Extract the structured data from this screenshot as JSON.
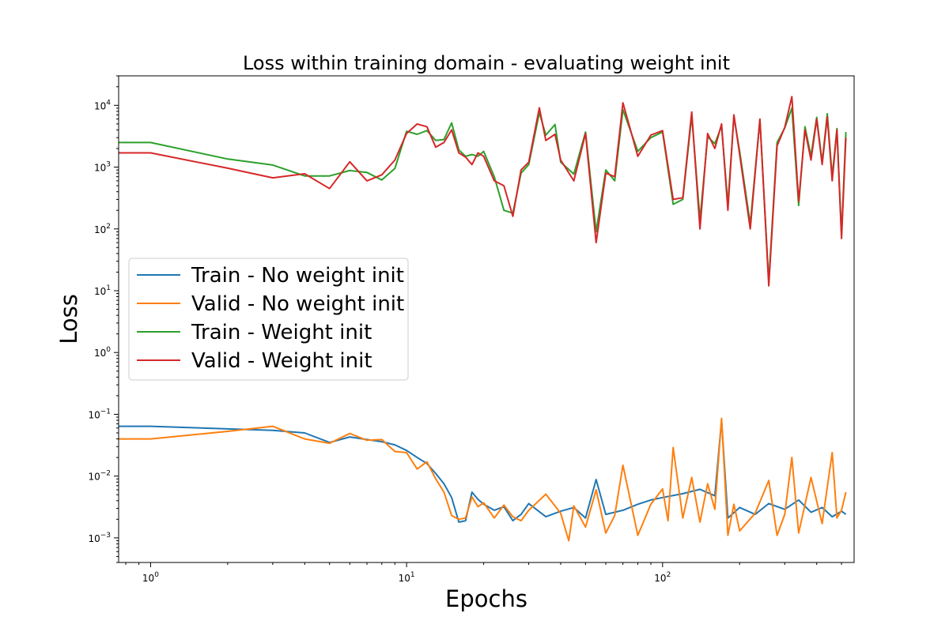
{
  "chart_data": {
    "type": "line",
    "title": "Loss within training domain - evaluating weight init",
    "xlabel": "Epochs",
    "ylabel": "Loss",
    "xscale": "log",
    "yscale": "log",
    "xlim": [
      0.75,
      560
    ],
    "ylim": [
      0.0004,
      30000
    ],
    "grid": false,
    "legend_position": "center-left",
    "x_ticks": [
      {
        "value": 1,
        "base": "10",
        "exp": "0"
      },
      {
        "value": 10,
        "base": "10",
        "exp": "1"
      },
      {
        "value": 100,
        "base": "10",
        "exp": "2"
      }
    ],
    "y_ticks": [
      {
        "value": 0.001,
        "base": "10",
        "exp": "−3"
      },
      {
        "value": 0.01,
        "base": "10",
        "exp": "−2"
      },
      {
        "value": 0.1,
        "base": "10",
        "exp": "−1"
      },
      {
        "value": 1,
        "base": "10",
        "exp": "0"
      },
      {
        "value": 10,
        "base": "10",
        "exp": "1"
      },
      {
        "value": 100,
        "base": "10",
        "exp": "2"
      },
      {
        "value": 1000,
        "base": "10",
        "exp": "3"
      },
      {
        "value": 10000,
        "base": "10",
        "exp": "4"
      }
    ],
    "series": [
      {
        "name": "Train - No weight init",
        "color": "#1f77b4",
        "x": [
          0.75,
          1,
          2,
          3,
          4,
          5,
          6,
          7,
          8,
          9,
          10,
          11,
          12,
          13,
          14,
          15,
          16,
          17,
          18,
          19,
          20,
          22,
          24,
          26,
          28,
          30,
          35,
          40,
          45,
          50,
          55,
          60,
          70,
          80,
          90,
          100,
          120,
          140,
          160,
          170,
          180,
          200,
          230,
          260,
          300,
          340,
          380,
          420,
          460,
          500,
          520
        ],
        "y": [
          0.064,
          0.064,
          0.058,
          0.055,
          0.05,
          0.035,
          0.043,
          0.039,
          0.036,
          0.032,
          0.026,
          0.02,
          0.016,
          0.011,
          0.0075,
          0.0045,
          0.0018,
          0.0019,
          0.0055,
          0.0042,
          0.0035,
          0.0028,
          0.0032,
          0.0019,
          0.0024,
          0.0036,
          0.0022,
          0.0027,
          0.0031,
          0.0021,
          0.0088,
          0.0024,
          0.0028,
          0.0035,
          0.0041,
          0.0045,
          0.0052,
          0.0061,
          0.0048,
          0.079,
          0.0021,
          0.0031,
          0.0024,
          0.0036,
          0.0029,
          0.0041,
          0.0026,
          0.0031,
          0.0022,
          0.0027,
          0.0024
        ]
      },
      {
        "name": "Valid - No weight init",
        "color": "#ff7f0e",
        "x": [
          0.75,
          1,
          2,
          3,
          4,
          5,
          6,
          7,
          8,
          9,
          10,
          11,
          12,
          13,
          14,
          15,
          16,
          17,
          18,
          19,
          20,
          22,
          24,
          26,
          28,
          30,
          35,
          40,
          43,
          45,
          50,
          55,
          60,
          65,
          70,
          80,
          90,
          100,
          105,
          110,
          120,
          130,
          140,
          150,
          160,
          170,
          180,
          190,
          200,
          230,
          260,
          280,
          300,
          320,
          340,
          380,
          420,
          460,
          480,
          500,
          520
        ],
        "y": [
          0.04,
          0.04,
          0.053,
          0.064,
          0.04,
          0.034,
          0.049,
          0.038,
          0.039,
          0.025,
          0.024,
          0.013,
          0.017,
          0.009,
          0.0055,
          0.0023,
          0.002,
          0.0021,
          0.0046,
          0.0032,
          0.0037,
          0.0021,
          0.0034,
          0.0022,
          0.0019,
          0.0028,
          0.0051,
          0.0025,
          0.0009,
          0.0033,
          0.0015,
          0.006,
          0.0012,
          0.0023,
          0.015,
          0.0011,
          0.0035,
          0.0062,
          0.0019,
          0.029,
          0.0021,
          0.0095,
          0.0018,
          0.0075,
          0.0029,
          0.086,
          0.0011,
          0.0035,
          0.0013,
          0.0025,
          0.0085,
          0.0011,
          0.0024,
          0.02,
          0.0012,
          0.0095,
          0.0017,
          0.024,
          0.0021,
          0.0028,
          0.0055
        ]
      },
      {
        "name": "Train - Weight init",
        "color": "#2ca02c",
        "x": [
          0.75,
          1,
          2,
          3,
          4,
          5,
          6,
          7,
          8,
          9,
          10,
          11,
          12,
          13,
          14,
          15,
          16,
          17,
          18,
          19,
          20,
          22,
          24,
          26,
          28,
          30,
          33,
          35,
          38,
          40,
          45,
          50,
          55,
          60,
          65,
          70,
          80,
          90,
          100,
          110,
          120,
          130,
          140,
          150,
          160,
          170,
          180,
          190,
          200,
          220,
          240,
          260,
          280,
          300,
          320,
          340,
          360,
          380,
          400,
          420,
          440,
          460,
          480,
          500,
          520
        ],
        "y": [
          2500,
          2500,
          1350,
          1080,
          720,
          720,
          880,
          820,
          620,
          950,
          3800,
          3400,
          3900,
          2700,
          2800,
          5200,
          1900,
          1500,
          1600,
          1500,
          1800,
          700,
          200,
          180,
          800,
          1100,
          7600,
          3300,
          4900,
          1200,
          770,
          3700,
          90,
          900,
          600,
          8500,
          1800,
          3000,
          3700,
          250,
          300,
          6800,
          140,
          3100,
          2400,
          4600,
          250,
          6600,
          1800,
          120,
          5900,
          14,
          2500,
          4300,
          9000,
          240,
          4500,
          1500,
          6400,
          1200,
          7300,
          700,
          4200,
          80,
          3700
        ]
      },
      {
        "name": "Valid - Weight init",
        "color": "#d62728",
        "x": [
          0.75,
          1,
          2,
          3,
          4,
          5,
          6,
          7,
          8,
          9,
          10,
          11,
          12,
          13,
          14,
          15,
          16,
          17,
          18,
          19,
          20,
          22,
          24,
          26,
          28,
          30,
          33,
          35,
          38,
          40,
          45,
          50,
          55,
          60,
          65,
          70,
          80,
          90,
          100,
          110,
          120,
          130,
          140,
          150,
          160,
          170,
          180,
          190,
          200,
          220,
          240,
          260,
          280,
          300,
          320,
          340,
          360,
          380,
          400,
          420,
          440,
          460,
          480,
          500,
          520
        ],
        "y": [
          1700,
          1700,
          960,
          670,
          780,
          450,
          1220,
          600,
          750,
          1300,
          3500,
          5000,
          4500,
          2100,
          2500,
          4000,
          1700,
          1450,
          1100,
          1700,
          1500,
          600,
          500,
          160,
          900,
          1200,
          9100,
          2700,
          3400,
          1300,
          600,
          3500,
          60,
          800,
          700,
          11000,
          1500,
          3300,
          3900,
          300,
          320,
          7800,
          100,
          3500,
          2000,
          5000,
          200,
          7000,
          1600,
          100,
          6000,
          12,
          2200,
          4400,
          13800,
          280,
          4000,
          1300,
          6000,
          1100,
          6500,
          600,
          4000,
          70,
          3000
        ]
      }
    ]
  }
}
